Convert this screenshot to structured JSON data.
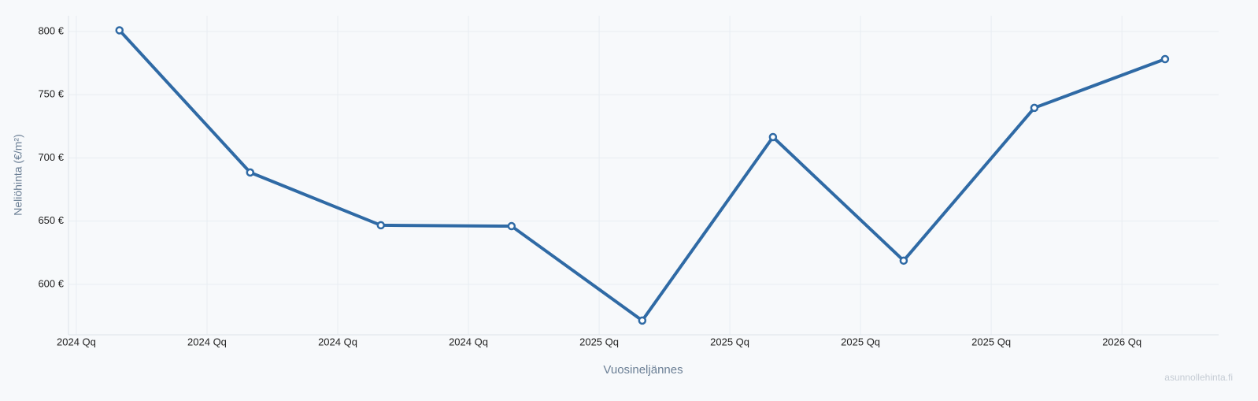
{
  "chart_data": {
    "type": "line",
    "x_label": "Vuosineljännes",
    "y_label": "Neliöhinta (€/m²)",
    "watermark": "asunnollehinta.fi",
    "x": [
      0,
      1,
      2,
      3,
      4,
      5,
      6,
      7,
      8
    ],
    "series": [
      {
        "name": "Neliöhinta",
        "color": "#2f6aa5",
        "values": [
          801,
          688.5,
          646.7,
          646,
          571.3,
          716.5,
          618.7,
          739.6,
          778.2
        ]
      }
    ],
    "xlim": [
      -0.39,
      8.41
    ],
    "xticks": [
      {
        "value": -0.33,
        "label": "2024 Qq"
      },
      {
        "value": 0.67,
        "label": "2024 Qq"
      },
      {
        "value": 1.67,
        "label": "2024 Qq"
      },
      {
        "value": 2.67,
        "label": "2024 Qq"
      },
      {
        "value": 3.67,
        "label": "2025 Qq"
      },
      {
        "value": 4.67,
        "label": "2025 Qq"
      },
      {
        "value": 5.67,
        "label": "2025 Qq"
      },
      {
        "value": 6.67,
        "label": "2025 Qq"
      },
      {
        "value": 7.67,
        "label": "2026 Qq"
      }
    ],
    "ylim": [
      560,
      812.5
    ],
    "yticks": [
      {
        "value": 600,
        "label": "600 €"
      },
      {
        "value": 650,
        "label": "650 €"
      },
      {
        "value": 700,
        "label": "700 €"
      },
      {
        "value": 750,
        "label": "750 €"
      },
      {
        "value": 800,
        "label": "800 €"
      }
    ],
    "grid": true
  }
}
